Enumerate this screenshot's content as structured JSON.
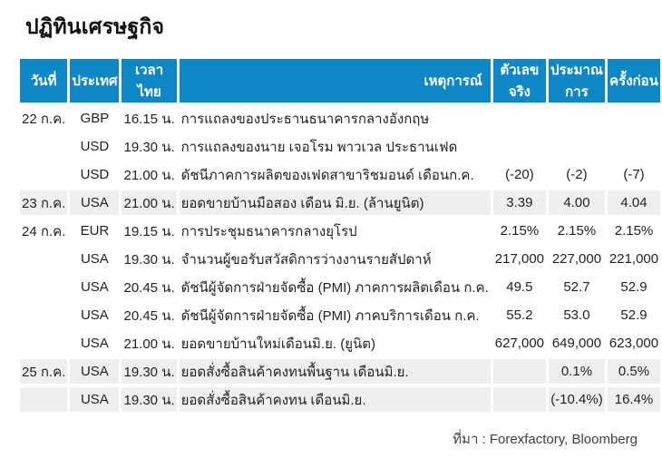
{
  "title": "ปฏิทินเศรษฐกิจ",
  "source": "ที่มา : Forexfactory, Bloomberg",
  "colors": {
    "header_bg": "#0e87c6",
    "shaded_row_bg": "#efefef",
    "header_text": "#ffffff",
    "body_text": "#231f20"
  },
  "table": {
    "headers": {
      "date": "วันที่",
      "country": "ประเทศ",
      "time": "เวลาไทย",
      "event": "เหตุการณ์",
      "actual": "ตัวเลขจริง",
      "forecast": "ประมาณการ",
      "previous": "ครั้งก่อน"
    },
    "rows": [
      {
        "date": "22 ก.ค.",
        "country": "GBP",
        "time": "16.15 น.",
        "event": "การแถลงของประธานธนาคารกลางอังกฤษ",
        "actual": "",
        "forecast": "",
        "previous": "",
        "shaded": false
      },
      {
        "date": "",
        "country": "USD",
        "time": "19.30 น.",
        "event": "การแถลงของนาย เจอโรม พาวเวล ประธานเฟด",
        "actual": "",
        "forecast": "",
        "previous": "",
        "shaded": false
      },
      {
        "date": "",
        "country": "USD",
        "time": "21.00 น.",
        "event": "ดัชนีภาคการผลิตของเฟดสาขาริชมอนด์ เดือนก.ค.",
        "actual": "(-20)",
        "forecast": "(-2)",
        "previous": "(-7)",
        "shaded": false
      },
      {
        "date": "23 ก.ค.",
        "country": "USA",
        "time": "21.00 น.",
        "event": "ยอดขายบ้านมือสอง เดือน มิ.ย. (ล้านยูนิต)",
        "actual": "3.39",
        "forecast": "4.00",
        "previous": "4.04",
        "shaded": true
      },
      {
        "date": "24 ก.ค.",
        "country": "EUR",
        "time": "19.15 น.",
        "event": "การประชุมธนาคารกลางยุโรป",
        "actual": "2.15%",
        "forecast": "2.15%",
        "previous": "2.15%",
        "shaded": false
      },
      {
        "date": "",
        "country": "USA",
        "time": "19.30 น.",
        "event": "จำนวนผู้ขอรับสวัสดิการว่างงานรายสัปดาห์",
        "actual": "217,000",
        "forecast": "227,000",
        "previous": "221,000",
        "shaded": false
      },
      {
        "date": "",
        "country": "USA",
        "time": "20.45 น.",
        "event": "ดัชนีผู้จัดการฝ่ายจัดซื้อ (PMI) ภาคการผลิตเดือน ก.ค.",
        "actual": "49.5",
        "forecast": "52.7",
        "previous": "52.9",
        "shaded": false
      },
      {
        "date": "",
        "country": "USA",
        "time": "20.45 น.",
        "event": "ดัชนีผู้จัดการฝ่ายจัดซื้อ (PMI) ภาคบริการเดือน ก.ค.",
        "actual": "55.2",
        "forecast": "53.0",
        "previous": "52.9",
        "shaded": false
      },
      {
        "date": "",
        "country": "USA",
        "time": "21.00 น.",
        "event": "ยอดขายบ้านใหม่เดือนมิ.ย. (ยูนิต)",
        "actual": "627,000",
        "forecast": "649,000",
        "previous": "623,000",
        "shaded": false
      },
      {
        "date": "25 ก.ค.",
        "country": "USA",
        "time": "19.30 น.",
        "event": "ยอดสั่งซื้อสินค้าคงทนพื้นฐาน เดือนมิ.ย.",
        "actual": "",
        "forecast": "0.1%",
        "previous": "0.5%",
        "shaded": true
      },
      {
        "date": "",
        "country": "USA",
        "time": "19.30 น.",
        "event": "ยอดสั่งซื้อสินค้าคงทน เดือนมิ.ย.",
        "actual": "",
        "forecast": "(-10.4%)",
        "previous": "16.4%",
        "shaded": true
      }
    ]
  }
}
